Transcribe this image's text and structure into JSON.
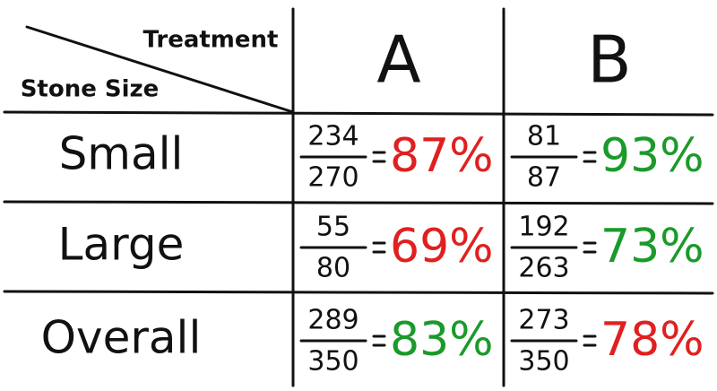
{
  "header": {
    "column_title": "Treatment",
    "row_title": "Stone Size",
    "columns": [
      "A",
      "B"
    ]
  },
  "rows": [
    {
      "label": "Small",
      "cells": [
        {
          "numerator": "234",
          "denominator": "270",
          "percent": "87%",
          "color": "#e02020"
        },
        {
          "numerator": "81",
          "denominator": "87",
          "percent": "93%",
          "color": "#1a9a2a"
        }
      ]
    },
    {
      "label": "Large",
      "cells": [
        {
          "numerator": "55",
          "denominator": "80",
          "percent": "69%",
          "color": "#e02020"
        },
        {
          "numerator": "192",
          "denominator": "263",
          "percent": "73%",
          "color": "#1a9a2a"
        }
      ]
    },
    {
      "label": "Overall",
      "cells": [
        {
          "numerator": "289",
          "denominator": "350",
          "percent": "83%",
          "color": "#1a9a2a"
        },
        {
          "numerator": "273",
          "denominator": "350",
          "percent": "78%",
          "color": "#e02020"
        }
      ]
    }
  ]
}
